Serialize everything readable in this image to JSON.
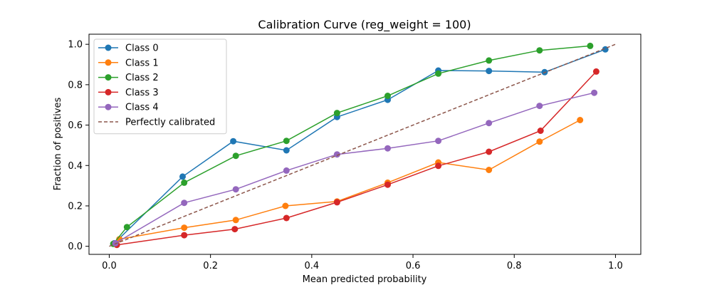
{
  "chart_data": {
    "type": "line",
    "title": "Calibration Curve (reg_weight = 100)",
    "xlabel": "Mean predicted probability",
    "ylabel": "Fraction of positives",
    "xlim": [
      -0.04,
      1.05
    ],
    "ylim": [
      -0.04,
      1.05
    ],
    "xticks": [
      "0.0",
      "0.2",
      "0.4",
      "0.6",
      "0.8",
      "1.0"
    ],
    "yticks": [
      "0.0",
      "0.2",
      "0.4",
      "0.6",
      "0.8",
      "1.0"
    ],
    "grid": false,
    "legend_position": "upper-left",
    "series": [
      {
        "name": "Class 0",
        "color": "#1f77b4",
        "x": [
          0.01,
          0.145,
          0.245,
          0.35,
          0.45,
          0.55,
          0.65,
          0.75,
          0.86,
          0.98
        ],
        "y": [
          0.015,
          0.345,
          0.52,
          0.475,
          0.64,
          0.725,
          0.87,
          0.868,
          0.862,
          0.975
        ]
      },
      {
        "name": "Class 1",
        "color": "#ff7f0e",
        "x": [
          0.02,
          0.148,
          0.25,
          0.348,
          0.45,
          0.55,
          0.65,
          0.75,
          0.85,
          0.93
        ],
        "y": [
          0.035,
          0.092,
          0.13,
          0.2,
          0.222,
          0.315,
          0.415,
          0.378,
          0.518,
          0.625
        ]
      },
      {
        "name": "Class 2",
        "color": "#2ca02c",
        "x": [
          0.008,
          0.035,
          0.148,
          0.25,
          0.35,
          0.45,
          0.55,
          0.65,
          0.75,
          0.85,
          0.95
        ],
        "y": [
          0.012,
          0.095,
          0.315,
          0.448,
          0.522,
          0.66,
          0.745,
          0.855,
          0.92,
          0.97,
          0.992
        ]
      },
      {
        "name": "Class 3",
        "color": "#d62728",
        "x": [
          0.015,
          0.148,
          0.248,
          0.35,
          0.45,
          0.55,
          0.65,
          0.75,
          0.852,
          0.962
        ],
        "y": [
          0.007,
          0.055,
          0.085,
          0.14,
          0.218,
          0.305,
          0.398,
          0.468,
          0.572,
          0.865
        ]
      },
      {
        "name": "Class 4",
        "color": "#9467bd",
        "x": [
          0.012,
          0.148,
          0.25,
          0.35,
          0.45,
          0.55,
          0.65,
          0.75,
          0.85,
          0.958
        ],
        "y": [
          0.015,
          0.215,
          0.282,
          0.375,
          0.455,
          0.485,
          0.522,
          0.61,
          0.695,
          0.76
        ]
      }
    ],
    "reference_line": {
      "name": "Perfectly calibrated",
      "color": "#8c564b",
      "x": [
        0,
        1
      ],
      "y": [
        0,
        1
      ],
      "style": "dashed"
    }
  }
}
